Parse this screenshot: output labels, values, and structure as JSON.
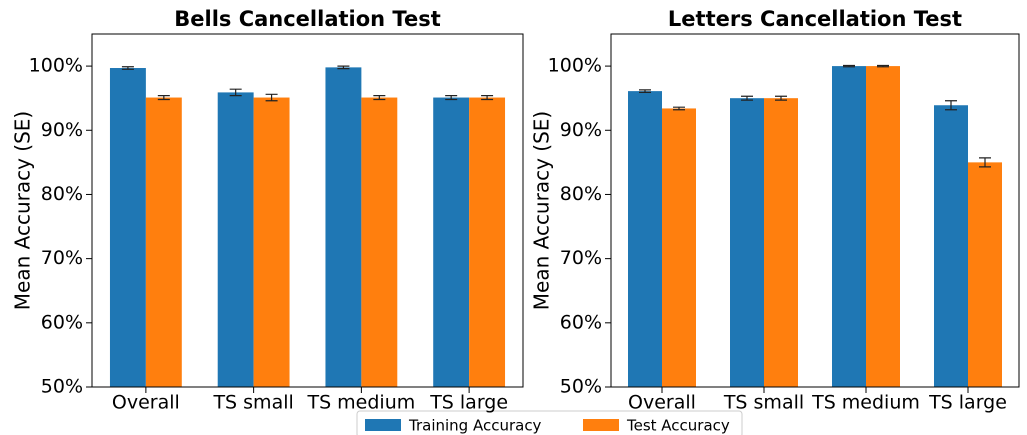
{
  "chart_data": [
    {
      "type": "bar",
      "title": "Bells Cancellation Test",
      "y_label": "Mean Accuracy (SE)",
      "categories": [
        "Overall",
        "TS small",
        "TS medium",
        "TS large"
      ],
      "series": [
        {
          "name": "Training Accuracy",
          "color": "#1f77b4",
          "values": [
            99.7,
            95.9,
            99.8,
            95.1
          ],
          "errors": [
            0.2,
            0.5,
            0.2,
            0.3
          ]
        },
        {
          "name": "Test Accuracy",
          "color": "#ff7f0e",
          "values": [
            95.1,
            95.1,
            95.1,
            95.1
          ],
          "errors": [
            0.3,
            0.5,
            0.3,
            0.3
          ]
        }
      ],
      "ylim": [
        50,
        105
      ],
      "yticks": [
        {
          "value": 50,
          "label": "50%"
        },
        {
          "value": 60,
          "label": "60%"
        },
        {
          "value": 70,
          "label": "70%"
        },
        {
          "value": 80,
          "label": "80%"
        },
        {
          "value": 90,
          "label": "90%"
        },
        {
          "value": 100,
          "label": "100%"
        }
      ]
    },
    {
      "type": "bar",
      "title": "Letters Cancellation Test",
      "y_label": "Mean Accuracy (SE)",
      "categories": [
        "Overall",
        "TS small",
        "TS medium",
        "TS large"
      ],
      "series": [
        {
          "color": "#1f77b4",
          "values": [
            96.1,
            95.0,
            100,
            93.9
          ],
          "errors": [
            0.2,
            0.3,
            0.1,
            0.7
          ]
        },
        {
          "color": "#ff7f0e",
          "values": [
            93.4,
            95.0,
            100,
            85.0
          ],
          "errors": [
            0.2,
            0.3,
            0.1,
            0.7
          ]
        }
      ],
      "ylim": [
        50,
        105
      ],
      "yticks": [
        {
          "value": 50,
          "label": "50%"
        },
        {
          "value": 60,
          "label": "60%"
        },
        {
          "value": 70,
          "label": "70%"
        },
        {
          "value": 80,
          "label": "80%"
        },
        {
          "value": 90,
          "label": "90%"
        },
        {
          "value": 100,
          "label": "100%"
        }
      ]
    }
  ]
}
